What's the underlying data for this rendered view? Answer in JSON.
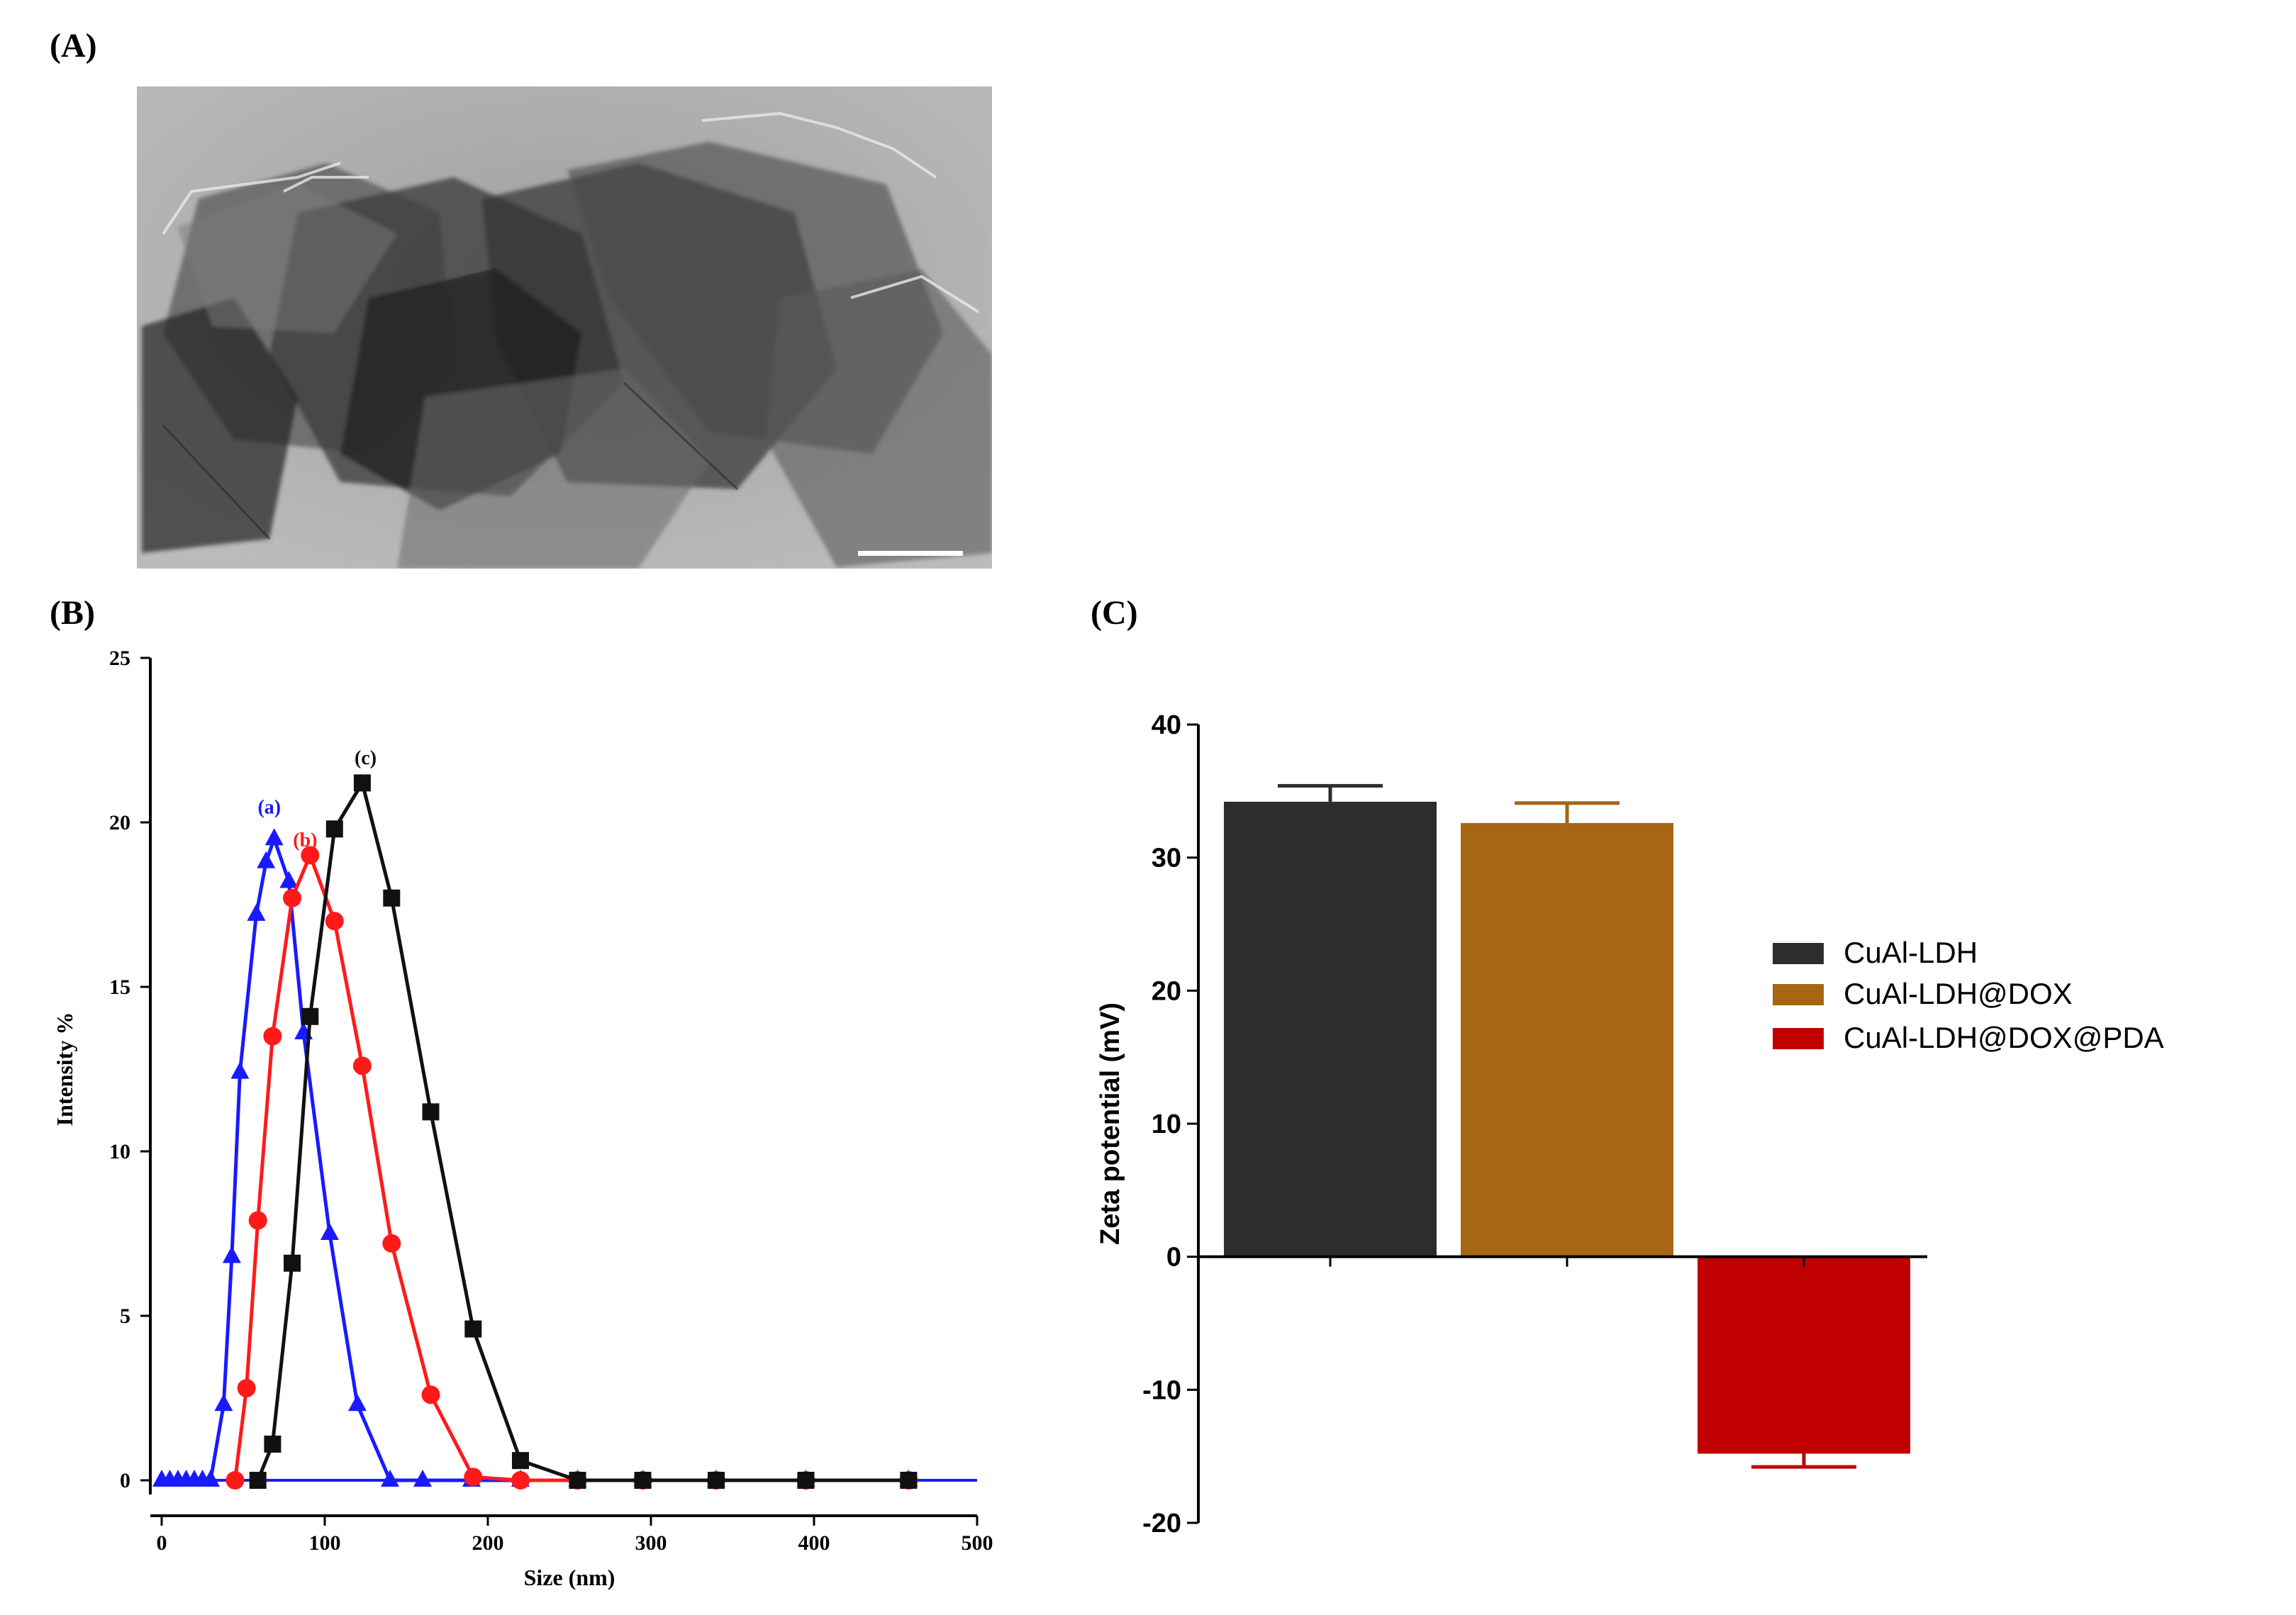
{
  "panels": {
    "a": {
      "label": "(A)",
      "image_name": "TEM micrograph of CuAl-LDH nanosheets"
    },
    "b": {
      "label": "(B)"
    },
    "c": {
      "label": "(C)"
    }
  },
  "chart_data": [
    {
      "type": "line",
      "panel": "B",
      "title": "",
      "xlabel": "Size (nm)",
      "ylabel": "Intensity %",
      "xlim": [
        0,
        500
      ],
      "ylim": [
        0,
        25
      ],
      "xticks": [
        0,
        100,
        200,
        300,
        400,
        500
      ],
      "yticks": [
        0,
        5,
        10,
        15,
        20,
        25
      ],
      "series": [
        {
          "name": "(a)",
          "color": "#1a1aff",
          "marker": "triangle",
          "x": [
            0,
            5,
            10,
            15,
            20,
            25,
            30,
            38,
            43,
            48,
            58,
            64,
            69,
            78,
            87,
            103,
            120,
            140,
            160,
            190,
            220,
            255,
            295,
            340,
            395,
            458
          ],
          "y": [
            0,
            0,
            0,
            0,
            0,
            0,
            0,
            2.3,
            6.8,
            12.4,
            17.2,
            18.8,
            19.5,
            18.2,
            13.6,
            7.5,
            2.3,
            0,
            0,
            0,
            0,
            0,
            0,
            0,
            0,
            0
          ]
        },
        {
          "name": "(b)",
          "color": "#ff1a1a",
          "marker": "circle",
          "x": [
            45,
            52,
            59,
            68,
            80,
            91,
            106,
            123,
            141,
            165,
            191,
            220,
            255,
            295,
            340,
            395,
            458
          ],
          "y": [
            0,
            2.8,
            7.9,
            13.5,
            17.7,
            19.0,
            17.0,
            12.6,
            7.2,
            2.6,
            0.1,
            0,
            0,
            0,
            0,
            0,
            0
          ],
          "peak_label": "(b)"
        },
        {
          "name": "(c)",
          "color": "#111111",
          "marker": "square",
          "x": [
            59,
            68,
            80,
            91,
            106,
            123,
            141,
            165,
            191,
            220,
            255,
            295,
            340,
            395,
            458
          ],
          "y": [
            0,
            1.1,
            6.6,
            14.1,
            19.8,
            21.2,
            17.7,
            11.2,
            4.6,
            0.6,
            0,
            0,
            0,
            0,
            0
          ],
          "peak_label": "(c)"
        }
      ],
      "peak_labels": [
        "(a)",
        "(b)",
        "(c)"
      ]
    },
    {
      "type": "bar",
      "panel": "C",
      "title": "",
      "xlabel": "",
      "ylabel": "Zeta potential (mV)",
      "ylim": [
        -20,
        40
      ],
      "yticks": [
        -20,
        -10,
        0,
        10,
        20,
        30,
        40
      ],
      "categories": [
        "CuAl-LDH",
        "CuAl-LDH@DOX",
        "CuAl-LDH@DOX@PDA"
      ],
      "values": [
        34.2,
        32.6,
        -14.8
      ],
      "errors": [
        1.2,
        1.5,
        1.0
      ],
      "colors": [
        "#2d2d2d",
        "#a66612",
        "#c00000"
      ],
      "legend": [
        "CuAl-LDH",
        "CuAl-LDH@DOX",
        "CuAl-LDH@DOX@PDA"
      ],
      "legend_position": "right"
    }
  ]
}
